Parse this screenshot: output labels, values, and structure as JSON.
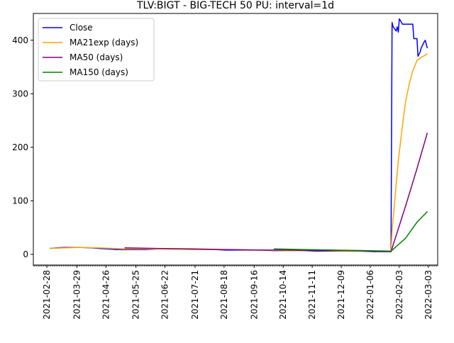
{
  "chart_data": {
    "type": "line",
    "title": "TLV:BIGT - BIG-TECH 50 PU: interval=1d",
    "xlabel": "",
    "ylabel": "",
    "x_axis_type": "date",
    "xlim": [
      "2021-02-15",
      "2022-03-12"
    ],
    "ylim": [
      -20,
      450
    ],
    "yticks": [
      0,
      100,
      200,
      300,
      400
    ],
    "xticks": [
      "2021-02-28",
      "2021-03-29",
      "2021-04-26",
      "2021-05-25",
      "2021-06-22",
      "2021-07-21",
      "2021-08-18",
      "2021-09-16",
      "2021-10-14",
      "2021-11-11",
      "2021-12-09",
      "2022-01-06",
      "2022-02-03",
      "2022-03-03"
    ],
    "grid": false,
    "legend_position": "top-left",
    "series": [
      {
        "name": "Close",
        "color": "#0000ff",
        "points": [
          [
            "2021-03-03",
            11
          ],
          [
            "2021-03-10",
            12
          ],
          [
            "2021-03-17",
            13
          ],
          [
            "2021-03-24",
            13
          ],
          [
            "2021-04-01",
            13
          ],
          [
            "2021-04-12",
            12
          ],
          [
            "2021-04-20",
            11
          ],
          [
            "2021-04-28",
            10
          ],
          [
            "2021-05-06",
            9
          ],
          [
            "2021-05-14",
            9
          ],
          [
            "2021-05-24",
            9
          ],
          [
            "2021-06-03",
            9
          ],
          [
            "2021-06-15",
            10
          ],
          [
            "2021-06-28",
            10
          ],
          [
            "2021-07-08",
            10
          ],
          [
            "2021-07-19",
            9
          ],
          [
            "2021-07-29",
            9
          ],
          [
            "2021-08-09",
            9
          ],
          [
            "2021-08-19",
            8
          ],
          [
            "2021-08-31",
            8
          ],
          [
            "2021-09-14",
            8
          ],
          [
            "2021-09-23",
            8
          ],
          [
            "2021-10-05",
            7
          ],
          [
            "2021-10-18",
            7
          ],
          [
            "2021-11-01",
            7
          ],
          [
            "2021-11-15",
            6
          ],
          [
            "2021-11-29",
            6
          ],
          [
            "2021-12-13",
            6
          ],
          [
            "2021-12-27",
            6
          ],
          [
            "2022-01-10",
            5
          ],
          [
            "2022-01-23",
            5
          ],
          [
            "2022-01-26",
            5
          ],
          [
            "2022-01-27",
            433
          ],
          [
            "2022-01-28",
            425
          ],
          [
            "2022-01-30",
            420
          ],
          [
            "2022-01-31",
            417
          ],
          [
            "2022-02-01",
            425
          ],
          [
            "2022-02-02",
            415
          ],
          [
            "2022-02-03",
            440
          ],
          [
            "2022-02-04",
            437
          ],
          [
            "2022-02-06",
            430
          ],
          [
            "2022-02-09",
            430
          ],
          [
            "2022-02-13",
            430
          ],
          [
            "2022-02-16",
            430
          ],
          [
            "2022-02-17",
            403
          ],
          [
            "2022-02-20",
            403
          ],
          [
            "2022-02-21",
            370
          ],
          [
            "2022-02-23",
            378
          ],
          [
            "2022-02-24",
            385
          ],
          [
            "2022-02-27",
            397
          ],
          [
            "2022-02-28",
            400
          ],
          [
            "2022-03-02",
            385
          ]
        ]
      },
      {
        "name": "MA21exp (days)",
        "color": "#ffa500",
        "points": [
          [
            "2021-03-03",
            11
          ],
          [
            "2021-03-17",
            12
          ],
          [
            "2021-04-01",
            13
          ],
          [
            "2021-04-20",
            12
          ],
          [
            "2021-05-14",
            10
          ],
          [
            "2021-06-15",
            10
          ],
          [
            "2021-07-19",
            9
          ],
          [
            "2021-08-19",
            9
          ],
          [
            "2021-09-23",
            8
          ],
          [
            "2021-10-18",
            7
          ],
          [
            "2021-11-15",
            7
          ],
          [
            "2021-12-13",
            6
          ],
          [
            "2022-01-10",
            6
          ],
          [
            "2022-01-26",
            5
          ],
          [
            "2022-01-27",
            44
          ],
          [
            "2022-01-30",
            110
          ],
          [
            "2022-02-02",
            175
          ],
          [
            "2022-02-06",
            240
          ],
          [
            "2022-02-09",
            285
          ],
          [
            "2022-02-13",
            322
          ],
          [
            "2022-02-16",
            343
          ],
          [
            "2022-02-20",
            362
          ],
          [
            "2022-02-24",
            368
          ],
          [
            "2022-02-28",
            372
          ],
          [
            "2022-03-02",
            375
          ]
        ]
      },
      {
        "name": "MA50 (days)",
        "color": "#800080",
        "points": [
          [
            "2021-05-14",
            12
          ],
          [
            "2021-06-15",
            11
          ],
          [
            "2021-07-19",
            10
          ],
          [
            "2021-08-19",
            9
          ],
          [
            "2021-09-23",
            8
          ],
          [
            "2021-10-18",
            8
          ],
          [
            "2021-11-15",
            7
          ],
          [
            "2021-12-13",
            7
          ],
          [
            "2022-01-10",
            6
          ],
          [
            "2022-01-26",
            5
          ],
          [
            "2022-02-09",
            90
          ],
          [
            "2022-02-20",
            160
          ],
          [
            "2022-03-02",
            227
          ]
        ]
      },
      {
        "name": "MA150 (days)",
        "color": "#008000",
        "points": [
          [
            "2021-10-05",
            10
          ],
          [
            "2021-11-01",
            9
          ],
          [
            "2021-12-01",
            8
          ],
          [
            "2022-01-01",
            7
          ],
          [
            "2022-01-26",
            6
          ],
          [
            "2022-02-09",
            30
          ],
          [
            "2022-02-20",
            60
          ],
          [
            "2022-03-02",
            80
          ]
        ]
      }
    ]
  }
}
